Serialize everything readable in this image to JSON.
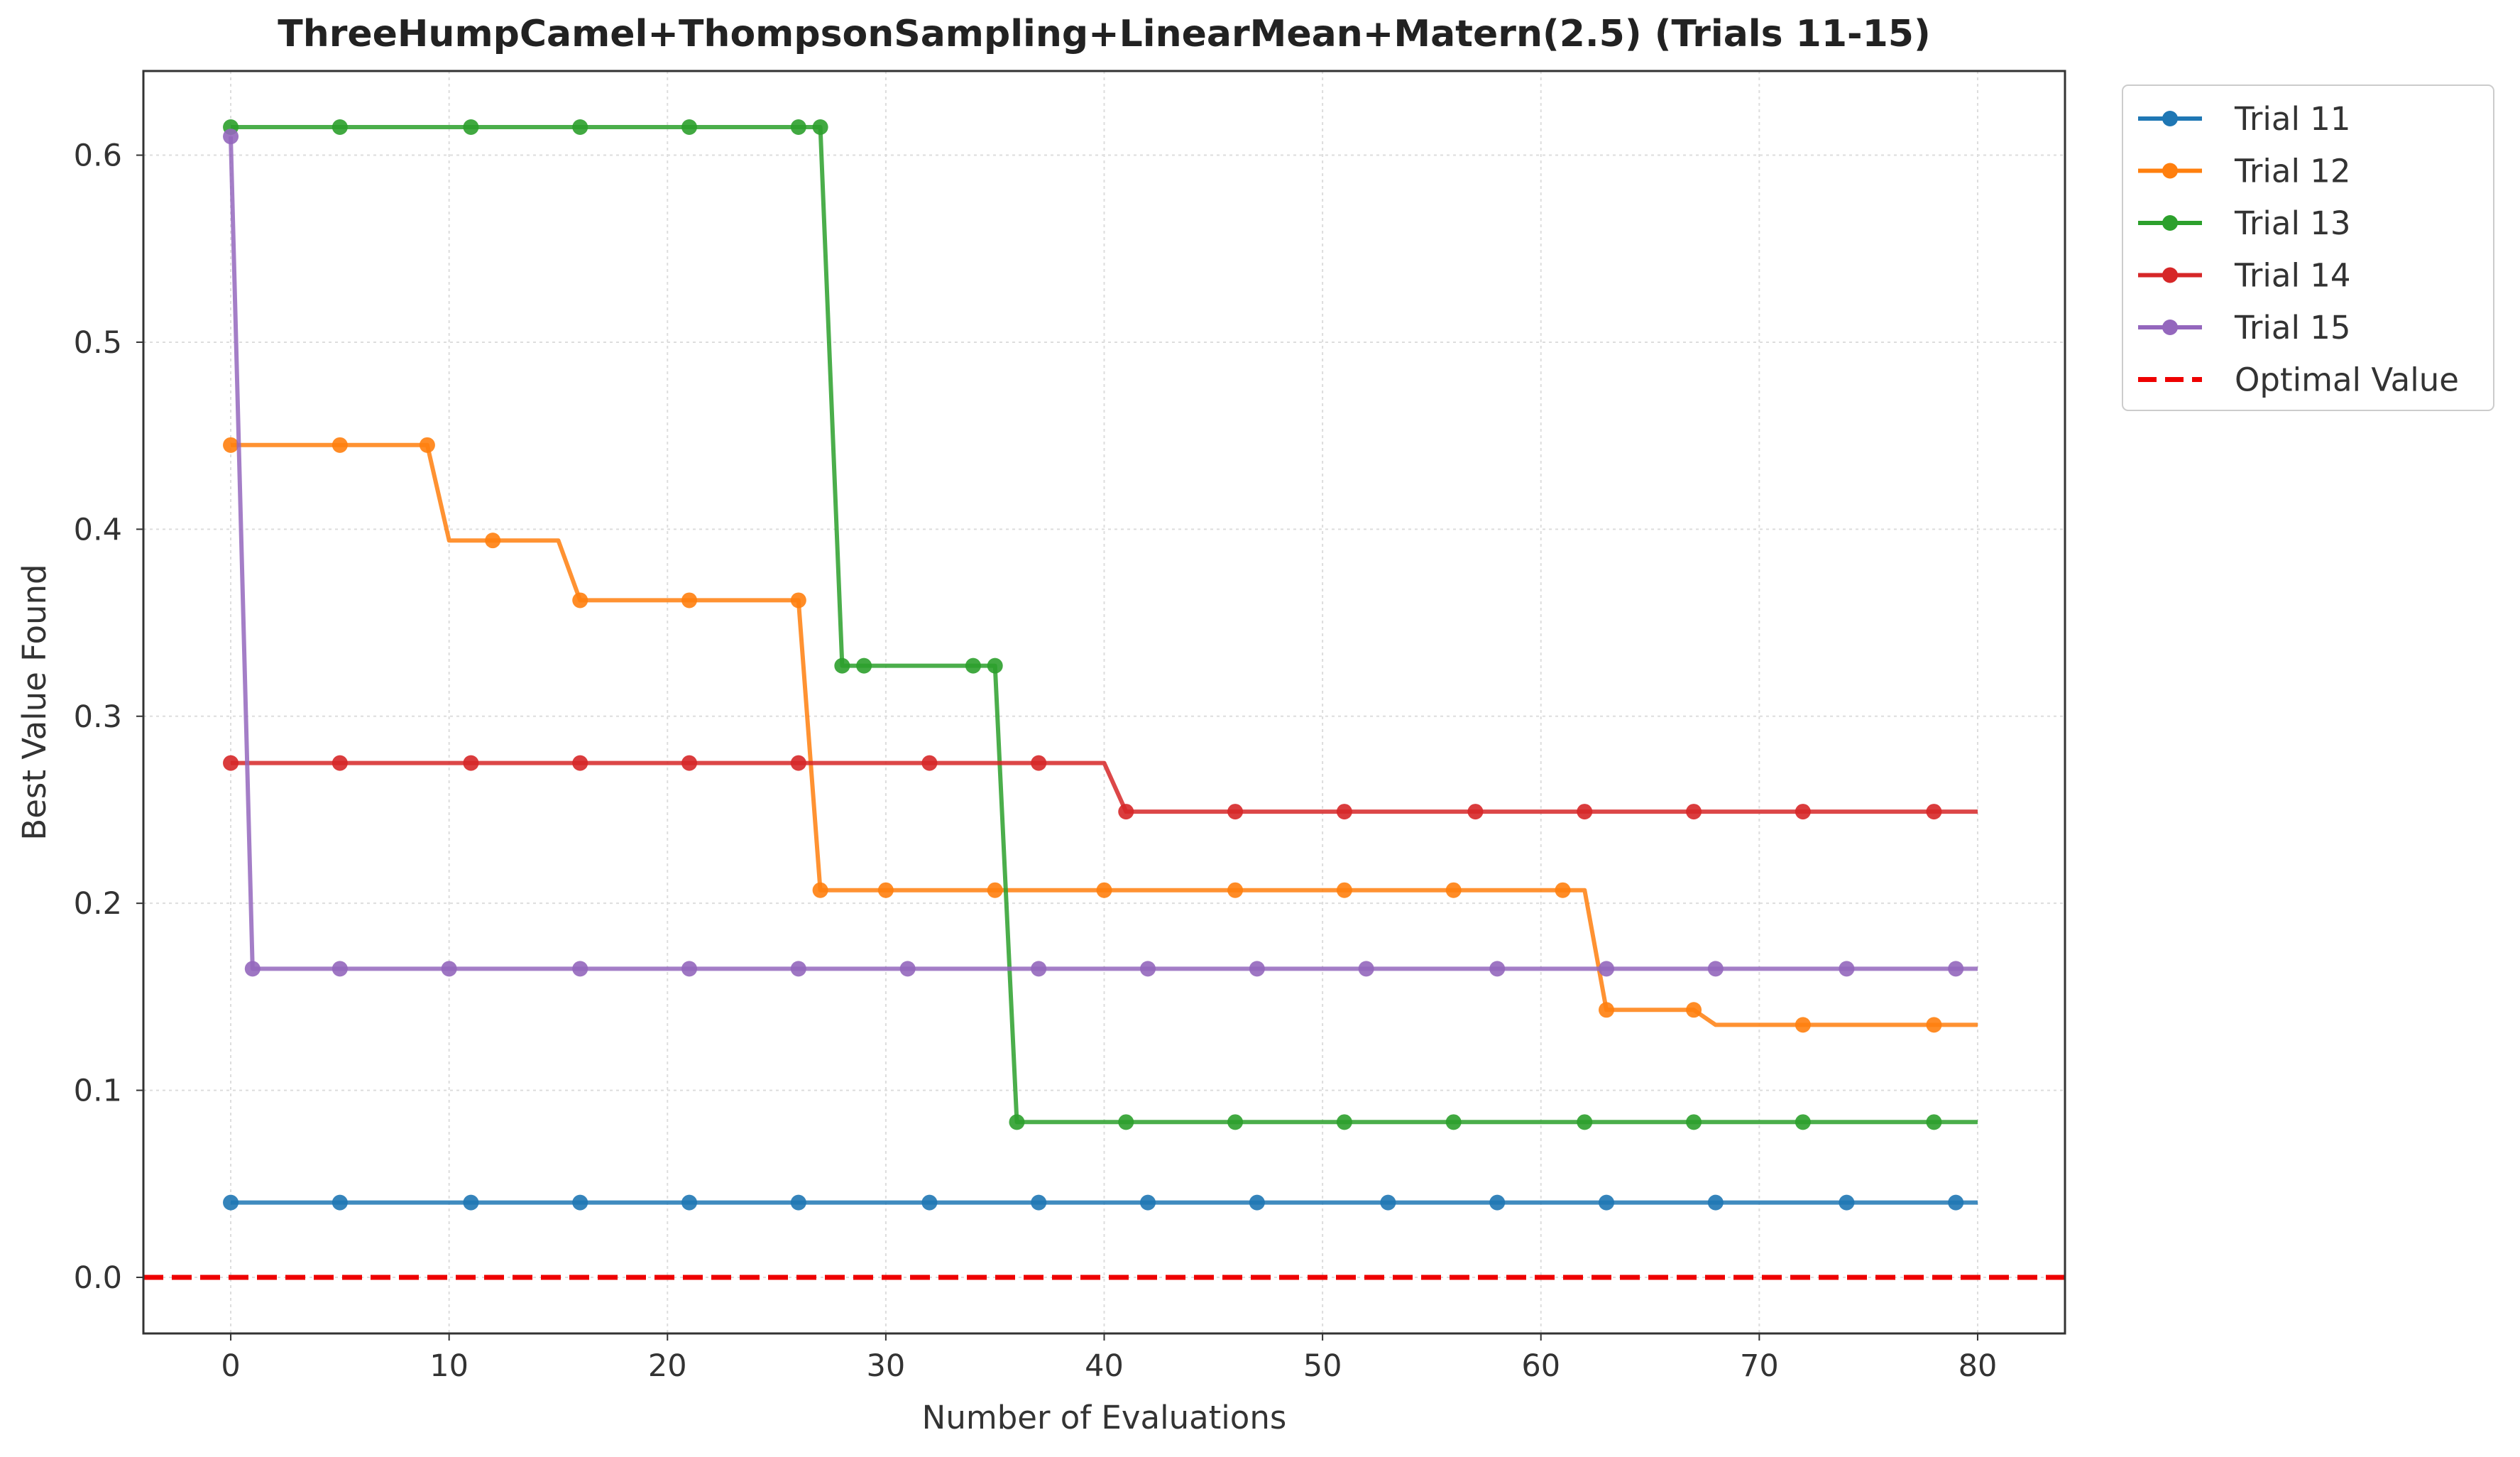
{
  "chart_data": {
    "type": "line",
    "title": "ThreeHumpCamel+ThompsonSampling+LinearMean+Matern(2.5) (Trials 11-15)",
    "xlabel": "Number of Evaluations",
    "ylabel": "Best Value Found",
    "xlim": [
      -4,
      84
    ],
    "ylim": [
      -0.03,
      0.645
    ],
    "xticks": [
      0,
      10,
      20,
      30,
      40,
      50,
      60,
      70,
      80
    ],
    "yticks": [
      0.0,
      0.1,
      0.2,
      0.3,
      0.4,
      0.5,
      0.6
    ],
    "grid": true,
    "legend_position": "outside-top-right",
    "series": [
      {
        "name": "Trial 11",
        "color": "#1f77b4",
        "steps": [
          [
            0,
            0.04
          ],
          [
            80,
            0.04
          ]
        ],
        "markers_x": [
          0,
          5,
          11,
          16,
          21,
          26,
          32,
          37,
          42,
          47,
          53,
          58,
          63,
          68,
          74,
          79
        ]
      },
      {
        "name": "Trial 12",
        "color": "#ff7f0e",
        "steps": [
          [
            0,
            0.445
          ],
          [
            9,
            0.445
          ],
          [
            10,
            0.394
          ],
          [
            15,
            0.394
          ],
          [
            16,
            0.362
          ],
          [
            26,
            0.362
          ],
          [
            27,
            0.207
          ],
          [
            62,
            0.207
          ],
          [
            63,
            0.143
          ],
          [
            67,
            0.143
          ],
          [
            68,
            0.135
          ],
          [
            80,
            0.135
          ]
        ],
        "markers_x": [
          0,
          5,
          9,
          12,
          16,
          21,
          26,
          27,
          30,
          35,
          40,
          46,
          51,
          56,
          61,
          63,
          67,
          72,
          78
        ]
      },
      {
        "name": "Trial 13",
        "color": "#2ca02c",
        "steps": [
          [
            0,
            0.615
          ],
          [
            27,
            0.615
          ],
          [
            28,
            0.327
          ],
          [
            35,
            0.327
          ],
          [
            36,
            0.083
          ],
          [
            80,
            0.083
          ]
        ],
        "markers_x": [
          0,
          5,
          11,
          16,
          21,
          26,
          27,
          28,
          29,
          34,
          35,
          36,
          41,
          46,
          51,
          56,
          62,
          67,
          72,
          78
        ]
      },
      {
        "name": "Trial 14",
        "color": "#d62728",
        "steps": [
          [
            0,
            0.275
          ],
          [
            40,
            0.275
          ],
          [
            41,
            0.249
          ],
          [
            80,
            0.249
          ]
        ],
        "markers_x": [
          0,
          5,
          11,
          16,
          21,
          26,
          32,
          37,
          41,
          46,
          51,
          57,
          62,
          67,
          72,
          78
        ]
      },
      {
        "name": "Trial 15",
        "color": "#9467bd",
        "steps": [
          [
            0,
            0.61
          ],
          [
            1,
            0.165
          ],
          [
            80,
            0.165
          ]
        ],
        "markers_x": [
          0,
          1,
          5,
          10,
          16,
          21,
          26,
          31,
          37,
          42,
          47,
          52,
          58,
          63,
          68,
          74,
          79
        ]
      }
    ],
    "reference_line": {
      "name": "Optimal Value",
      "y": 0.0,
      "color": "#ee0000",
      "style": "dashed"
    }
  }
}
